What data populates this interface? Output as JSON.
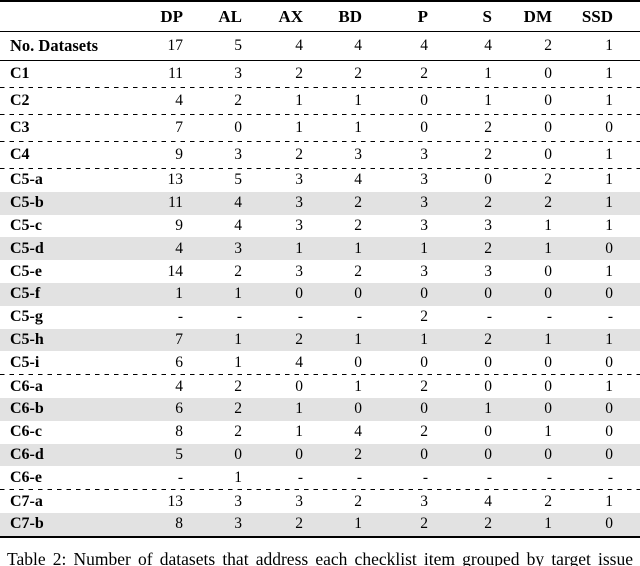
{
  "table": {
    "header": {
      "corner": "",
      "columns": [
        "DP",
        "AL",
        "AX",
        "BD",
        "P",
        "S",
        "DM",
        "SSD"
      ]
    },
    "summary": {
      "label": "No. Datasets",
      "values": [
        "17",
        "5",
        "4",
        "4",
        "4",
        "4",
        "2",
        "1"
      ]
    },
    "rows": [
      {
        "label": "C1",
        "values": [
          "11",
          "3",
          "2",
          "2",
          "2",
          "1",
          "0",
          "1"
        ],
        "shaded": false,
        "dashed_after": true
      },
      {
        "label": "C2",
        "values": [
          "4",
          "2",
          "1",
          "1",
          "0",
          "1",
          "0",
          "1"
        ],
        "shaded": false,
        "dashed_after": true
      },
      {
        "label": "C3",
        "values": [
          "7",
          "0",
          "1",
          "1",
          "0",
          "2",
          "0",
          "0"
        ],
        "shaded": false,
        "dashed_after": true
      },
      {
        "label": "C4",
        "values": [
          "9",
          "3",
          "2",
          "3",
          "3",
          "2",
          "0",
          "1"
        ],
        "shaded": false,
        "dashed_after": true
      },
      {
        "label": "C5-a",
        "values": [
          "13",
          "5",
          "3",
          "4",
          "3",
          "0",
          "2",
          "1"
        ],
        "shaded": false,
        "dashed_after": false
      },
      {
        "label": "C5-b",
        "values": [
          "11",
          "4",
          "3",
          "2",
          "3",
          "2",
          "2",
          "1"
        ],
        "shaded": true,
        "dashed_after": false
      },
      {
        "label": "C5-c",
        "values": [
          "9",
          "4",
          "3",
          "2",
          "3",
          "3",
          "1",
          "1"
        ],
        "shaded": false,
        "dashed_after": false
      },
      {
        "label": "C5-d",
        "values": [
          "4",
          "3",
          "1",
          "1",
          "1",
          "2",
          "1",
          "0"
        ],
        "shaded": true,
        "dashed_after": false
      },
      {
        "label": "C5-e",
        "values": [
          "14",
          "2",
          "3",
          "2",
          "3",
          "3",
          "0",
          "1"
        ],
        "shaded": false,
        "dashed_after": false
      },
      {
        "label": "C5-f",
        "values": [
          "1",
          "1",
          "0",
          "0",
          "0",
          "0",
          "0",
          "0"
        ],
        "shaded": true,
        "dashed_after": false
      },
      {
        "label": "C5-g",
        "values": [
          "-",
          "-",
          "-",
          "-",
          "2",
          "-",
          "-",
          "-"
        ],
        "shaded": false,
        "dashed_after": false
      },
      {
        "label": "C5-h",
        "values": [
          "7",
          "1",
          "2",
          "1",
          "1",
          "2",
          "1",
          "1"
        ],
        "shaded": true,
        "dashed_after": false
      },
      {
        "label": "C5-i",
        "values": [
          "6",
          "1",
          "4",
          "0",
          "0",
          "0",
          "0",
          "0"
        ],
        "shaded": false,
        "dashed_after": true
      },
      {
        "label": "C6-a",
        "values": [
          "4",
          "2",
          "0",
          "1",
          "2",
          "0",
          "0",
          "1"
        ],
        "shaded": false,
        "dashed_after": false
      },
      {
        "label": "C6-b",
        "values": [
          "6",
          "2",
          "1",
          "0",
          "0",
          "1",
          "0",
          "0"
        ],
        "shaded": true,
        "dashed_after": false
      },
      {
        "label": "C6-c",
        "values": [
          "8",
          "2",
          "1",
          "4",
          "2",
          "0",
          "1",
          "0"
        ],
        "shaded": false,
        "dashed_after": false
      },
      {
        "label": "C6-d",
        "values": [
          "5",
          "0",
          "0",
          "2",
          "0",
          "0",
          "0",
          "0"
        ],
        "shaded": true,
        "dashed_after": false
      },
      {
        "label": "C6-e",
        "values": [
          "-",
          "1",
          "-",
          "-",
          "-",
          "-",
          "-",
          "-"
        ],
        "shaded": false,
        "dashed_after": true
      },
      {
        "label": "C7-a",
        "values": [
          "13",
          "3",
          "3",
          "2",
          "3",
          "4",
          "2",
          "1"
        ],
        "shaded": false,
        "dashed_after": false
      },
      {
        "label": "C7-b",
        "values": [
          "8",
          "3",
          "2",
          "1",
          "2",
          "2",
          "1",
          "0"
        ],
        "shaded": true,
        "dashed_after": false
      }
    ]
  },
  "caption": "Table 2: Number of datasets that address each checklist item grouped by target issue",
  "colors": {
    "row_shade": "#e2e2e2",
    "rule": "#000000"
  }
}
